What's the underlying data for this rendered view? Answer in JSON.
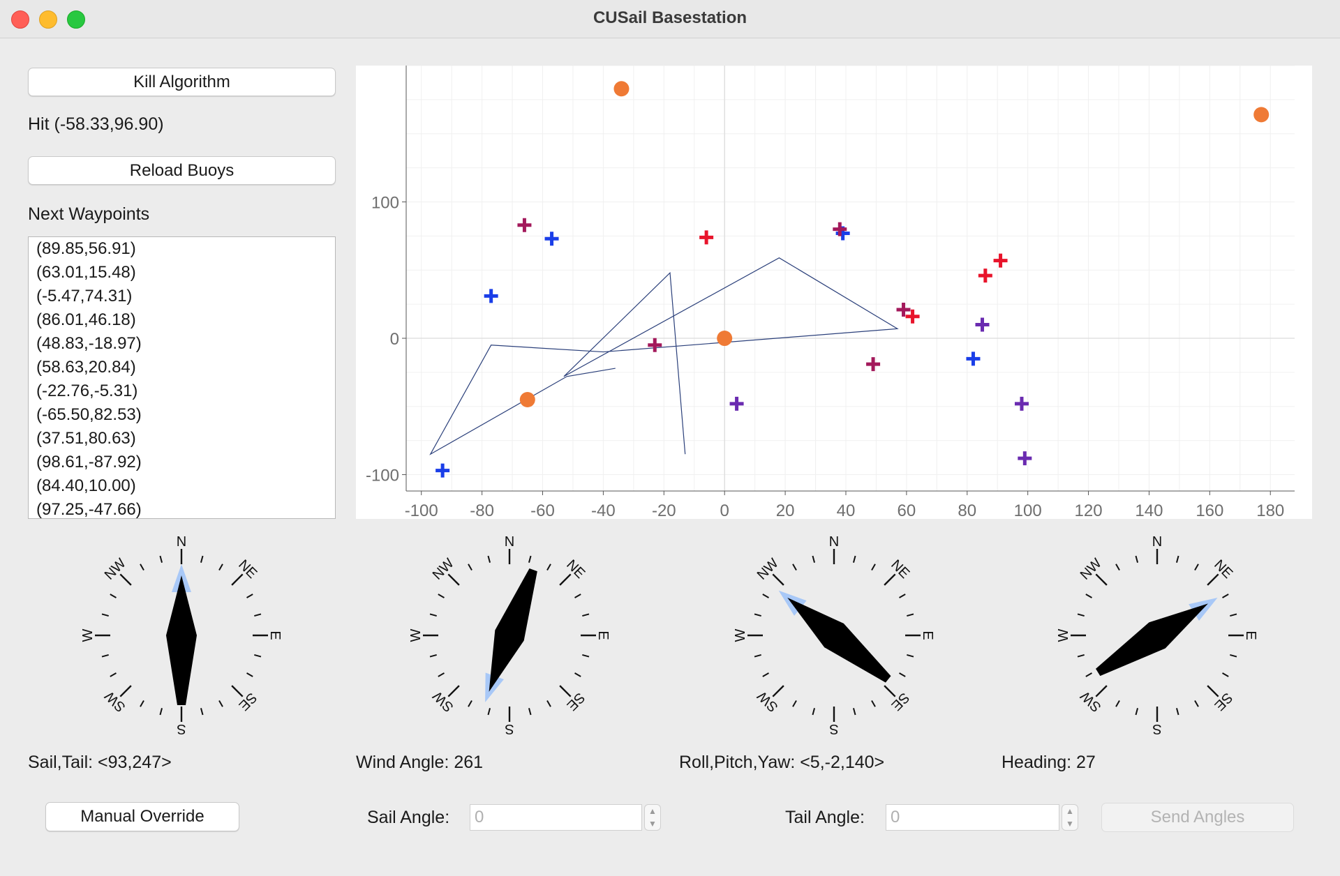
{
  "window": {
    "title": "CUSail Basestation"
  },
  "controls": {
    "kill_label": "Kill Algorithm",
    "hit_text": "Hit (-58.33,96.90)",
    "reload_label": "Reload Buoys",
    "waypoints_label": "Next Waypoints"
  },
  "waypoints": [
    "(89.85,56.91)",
    "(63.01,15.48)",
    "(-5.47,74.31)",
    "(86.01,46.18)",
    "(48.83,-18.97)",
    "(58.63,20.84)",
    "(-22.76,-5.31)",
    "(-65.50,82.53)",
    "(37.51,80.63)",
    "(98.61,-87.92)",
    "(84.40,10.00)",
    "(97.25,-47.66)"
  ],
  "chart_data": {
    "type": "scatter",
    "xlim": [
      -105,
      188
    ],
    "ylim": [
      -112,
      200
    ],
    "x_ticks": [
      -100,
      -80,
      -60,
      -40,
      -20,
      0,
      20,
      40,
      60,
      80,
      100,
      120,
      140,
      160,
      180
    ],
    "y_ticks": [
      -100,
      0,
      100
    ],
    "grid": true,
    "series": [
      {
        "marker": "circle",
        "color": "#ef7a35",
        "points": [
          [
            -34,
            183
          ],
          [
            177,
            164
          ],
          [
            0,
            0
          ],
          [
            -65,
            -45
          ]
        ]
      },
      {
        "marker": "plus",
        "color": "#1a3ee8",
        "points": [
          [
            -57,
            73
          ],
          [
            -77,
            31
          ],
          [
            39,
            77
          ],
          [
            82,
            -15
          ],
          [
            -93,
            -97
          ]
        ]
      },
      {
        "marker": "plus",
        "color": "#e8142b",
        "points": [
          [
            -6,
            74
          ],
          [
            62,
            16
          ],
          [
            86,
            46
          ],
          [
            91,
            57
          ]
        ]
      },
      {
        "marker": "plus",
        "color": "#a3195b",
        "points": [
          [
            -66,
            83
          ],
          [
            38,
            80
          ],
          [
            59,
            21
          ],
          [
            -23,
            -5
          ],
          [
            49,
            -19
          ]
        ]
      },
      {
        "marker": "plus",
        "color": "#6a2bb0",
        "points": [
          [
            4,
            -48
          ],
          [
            85,
            10
          ],
          [
            98,
            -48
          ],
          [
            99,
            -88
          ]
        ]
      }
    ],
    "path": {
      "color": "#2a3f7a",
      "points": [
        [
          -13,
          -85
        ],
        [
          -18,
          48
        ],
        [
          -53,
          -28
        ],
        [
          18,
          59
        ],
        [
          57,
          7
        ],
        [
          -40,
          -10
        ],
        [
          -77,
          -5
        ],
        [
          -97,
          -85
        ],
        [
          -52,
          -28
        ],
        [
          -36,
          -22
        ]
      ]
    }
  },
  "compasses": [
    {
      "direction_labels": [
        "N",
        "NE",
        "E",
        "SE",
        "S",
        "SW",
        "W",
        "NW"
      ],
      "angle": 0,
      "caption": "Sail,Tail: <93,247>"
    },
    {
      "direction_labels": [
        "N",
        "NE",
        "E",
        "SE",
        "S",
        "SW",
        "W",
        "NW"
      ],
      "angle": 200,
      "caption": "Wind Angle: 261"
    },
    {
      "direction_labels": [
        "N",
        "NE",
        "E",
        "SE",
        "S",
        "SW",
        "W",
        "NW"
      ],
      "angle": 309,
      "caption": "Roll,Pitch,Yaw: <5,-2,140>"
    },
    {
      "direction_labels": [
        "N",
        "NE",
        "E",
        "SE",
        "S",
        "SW",
        "W",
        "NW"
      ],
      "angle": 58,
      "caption": "Heading: 27"
    }
  ],
  "bottom": {
    "manual_label": "Manual Override",
    "sail_label": "Sail Angle:",
    "sail_placeholder": "0",
    "tail_label": "Tail Angle:",
    "tail_placeholder": "0",
    "send_label": "Send Angles"
  },
  "colors": {
    "accent": "#a8c8f7",
    "needle": "#000000"
  }
}
